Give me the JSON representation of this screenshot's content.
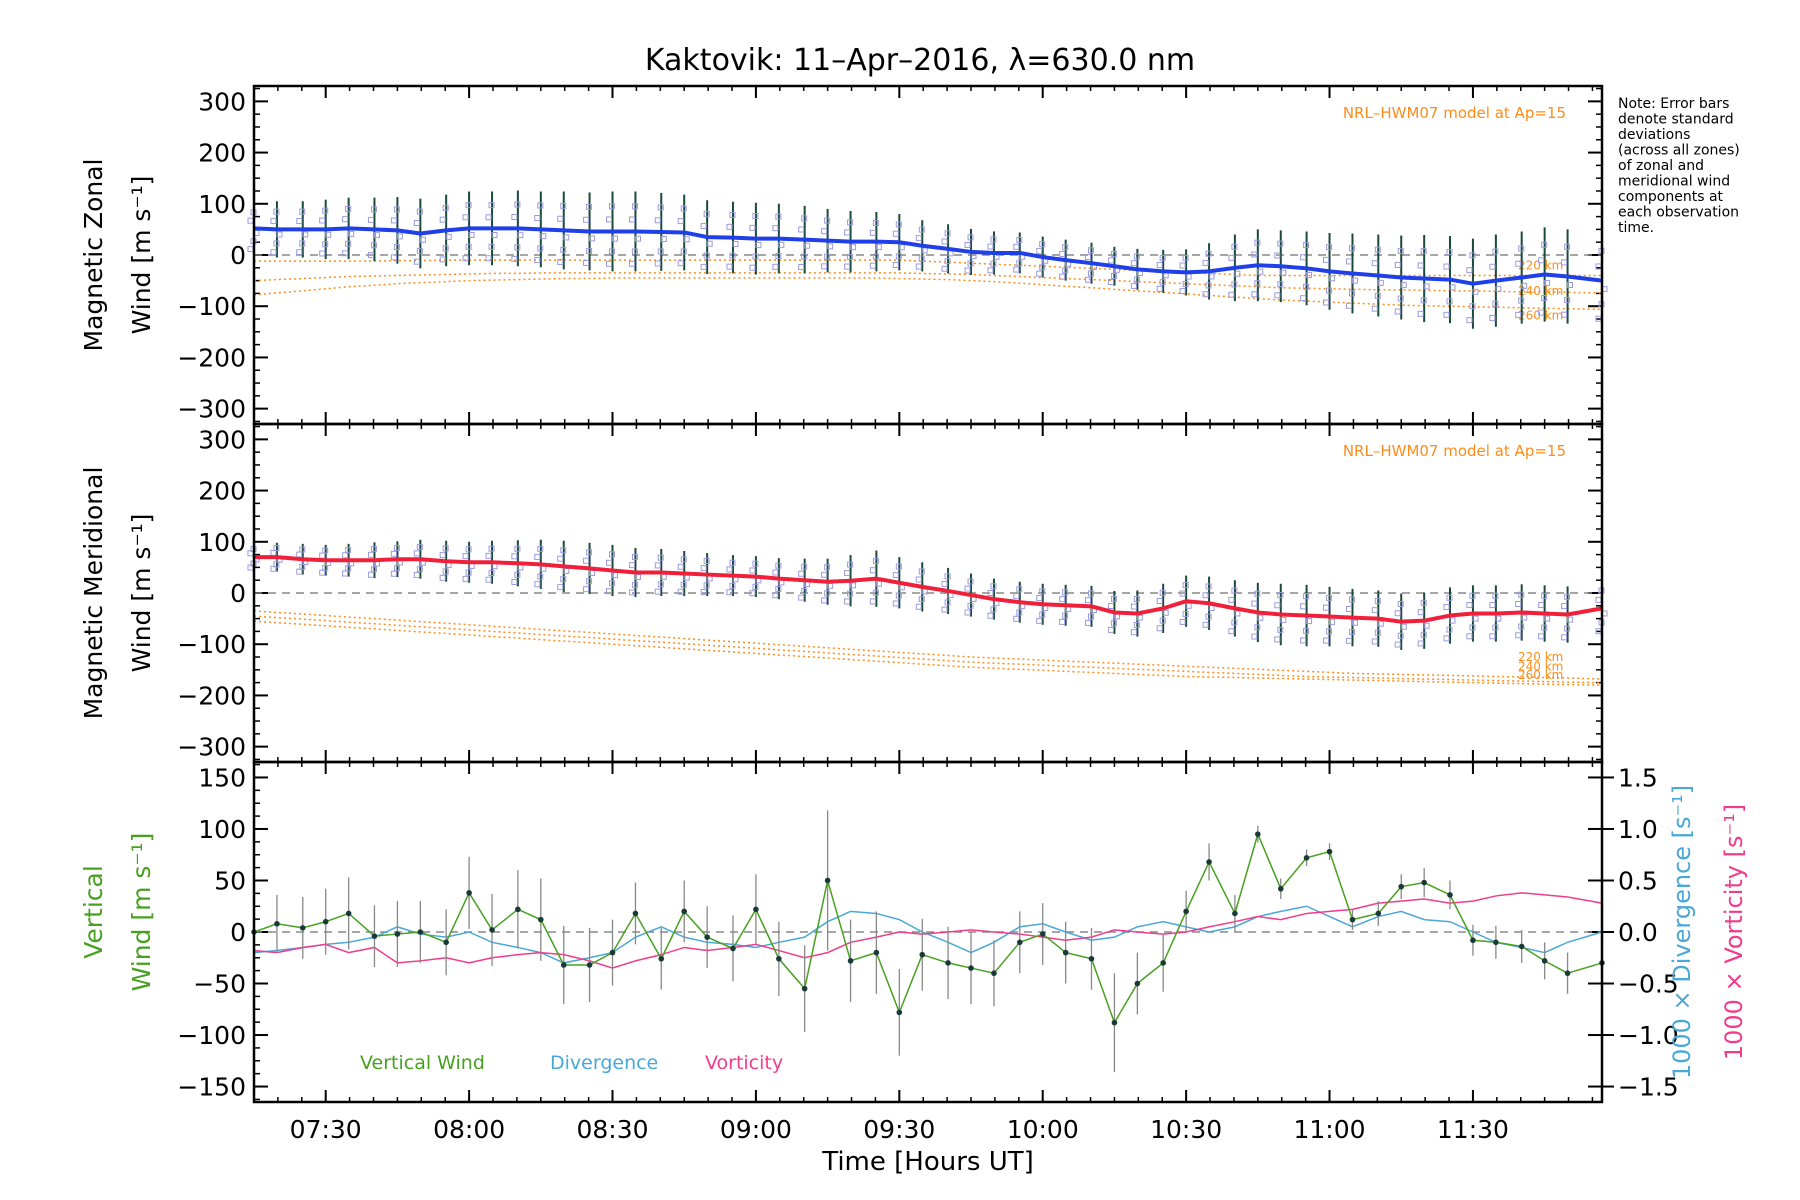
{
  "title": "Kaktovik: 11–Apr–2016, λ=630.0 nm",
  "note_lines": [
    "Note: Error bars",
    "denote standard",
    "deviations",
    "(across all zones)",
    "of zonal and",
    "meridional wind",
    "components at",
    "each observation",
    "time."
  ],
  "colors": {
    "zonal": "#1f3fe8",
    "meridional": "#f0203a",
    "vertical": "#48a020",
    "divergence": "#4aa8d8",
    "vorticity": "#f03c8c",
    "model": "#ff8c1a",
    "scatter": "#9a9ae0",
    "errorbar": "#1a4a3a"
  },
  "chart_data": [
    {
      "type": "line",
      "name": "zonal",
      "ylabel_line1": "Magnetic Zonal",
      "ylabel_line2": "Wind [m s⁻¹]",
      "model_label": "NRL–HWM07 model at Ap=15",
      "model_altitudes": [
        "220 km",
        "240 km",
        "260 km"
      ],
      "xlim": [
        7.25,
        11.95
      ],
      "ylim": [
        -330,
        330
      ],
      "yticks": [
        300,
        200,
        100,
        0,
        -100,
        -200,
        -300
      ],
      "x": [
        7.25,
        7.33,
        7.42,
        7.5,
        7.58,
        7.67,
        7.75,
        7.83,
        7.92,
        8.0,
        8.08,
        8.17,
        8.25,
        8.33,
        8.42,
        8.5,
        8.58,
        8.67,
        8.75,
        8.83,
        8.92,
        9.0,
        9.08,
        9.17,
        9.25,
        9.33,
        9.42,
        9.5,
        9.58,
        9.67,
        9.75,
        9.83,
        9.92,
        10.0,
        10.08,
        10.17,
        10.25,
        10.33,
        10.42,
        10.5,
        10.58,
        10.67,
        10.75,
        10.83,
        10.92,
        11.0,
        11.08,
        11.17,
        11.25,
        11.33,
        11.42,
        11.5,
        11.58,
        11.67,
        11.75,
        11.83,
        11.95
      ],
      "y": [
        52,
        50,
        50,
        50,
        52,
        50,
        48,
        42,
        48,
        52,
        52,
        52,
        50,
        48,
        46,
        46,
        46,
        45,
        44,
        35,
        34,
        32,
        32,
        30,
        28,
        26,
        26,
        25,
        18,
        12,
        6,
        4,
        4,
        -4,
        -10,
        -16,
        -22,
        -28,
        -32,
        -34,
        -32,
        -25,
        -20,
        -22,
        -26,
        -32,
        -36,
        -40,
        -44,
        -46,
        -48,
        -56,
        -50,
        -44,
        -38,
        -42,
        -50
      ],
      "err": [
        50,
        55,
        55,
        58,
        60,
        62,
        65,
        68,
        70,
        72,
        72,
        74,
        74,
        76,
        76,
        78,
        78,
        76,
        74,
        72,
        70,
        70,
        68,
        66,
        62,
        60,
        58,
        55,
        50,
        48,
        45,
        42,
        40,
        40,
        40,
        40,
        38,
        40,
        42,
        45,
        55,
        65,
        70,
        70,
        72,
        75,
        78,
        80,
        82,
        85,
        85,
        88,
        90,
        90,
        92,
        92,
        92
      ],
      "model_220": [
        -12,
        -12,
        -12,
        -12,
        -12,
        -12,
        -11,
        -11,
        -10,
        -10,
        -10,
        -10,
        -10,
        -10,
        -10,
        -10,
        -10,
        -10,
        -10,
        -10,
        -10,
        -10,
        -10,
        -10,
        -10,
        -10,
        -10,
        -10,
        -12,
        -14,
        -16,
        -18,
        -20,
        -22,
        -24,
        -26,
        -28,
        -30,
        -32,
        -34,
        -36,
        -38,
        -40,
        -40,
        -40,
        -40,
        -40,
        -40,
        -40,
        -40,
        -40,
        -40,
        -40,
        -40,
        -40,
        -40,
        -40
      ],
      "model_240": [
        -50,
        -48,
        -46,
        -44,
        -42,
        -41,
        -40,
        -39,
        -38,
        -37,
        -36,
        -36,
        -35,
        -35,
        -35,
        -35,
        -35,
        -35,
        -35,
        -35,
        -35,
        -35,
        -35,
        -35,
        -35,
        -35,
        -35,
        -35,
        -36,
        -37,
        -38,
        -40,
        -42,
        -44,
        -46,
        -48,
        -50,
        -52,
        -54,
        -56,
        -58,
        -60,
        -62,
        -64,
        -65,
        -66,
        -67,
        -68,
        -68,
        -69,
        -70,
        -70,
        -71,
        -72,
        -72,
        -73,
        -74
      ],
      "model_260": [
        -78,
        -74,
        -70,
        -66,
        -62,
        -59,
        -56,
        -54,
        -52,
        -50,
        -49,
        -48,
        -47,
        -46,
        -46,
        -45,
        -45,
        -45,
        -45,
        -45,
        -45,
        -45,
        -45,
        -45,
        -45,
        -45,
        -45,
        -46,
        -47,
        -48,
        -50,
        -52,
        -55,
        -58,
        -61,
        -64,
        -67,
        -70,
        -73,
        -76,
        -79,
        -82,
        -85,
        -88,
        -90,
        -92,
        -94,
        -96,
        -98,
        -99,
        -100,
        -101,
        -102,
        -103,
        -104,
        -105,
        -106
      ]
    },
    {
      "type": "line",
      "name": "meridional",
      "ylabel_line1": "Magnetic Meridional",
      "ylabel_line2": "Wind [m s⁻¹]",
      "model_label": "NRL–HWM07 model at Ap=15",
      "model_altitudes": [
        "220 km",
        "240 km",
        "260 km"
      ],
      "xlim": [
        7.25,
        11.95
      ],
      "ylim": [
        -330,
        330
      ],
      "yticks": [
        300,
        200,
        100,
        0,
        -100,
        -200,
        -300
      ],
      "x": [
        7.25,
        7.33,
        7.42,
        7.5,
        7.58,
        7.67,
        7.75,
        7.83,
        7.92,
        8.0,
        8.08,
        8.17,
        8.25,
        8.33,
        8.42,
        8.5,
        8.58,
        8.67,
        8.75,
        8.83,
        8.92,
        9.0,
        9.08,
        9.17,
        9.25,
        9.33,
        9.42,
        9.5,
        9.58,
        9.67,
        9.75,
        9.83,
        9.92,
        10.0,
        10.08,
        10.17,
        10.25,
        10.33,
        10.42,
        10.5,
        10.58,
        10.67,
        10.75,
        10.83,
        10.92,
        11.0,
        11.08,
        11.17,
        11.25,
        11.33,
        11.42,
        11.5,
        11.58,
        11.67,
        11.75,
        11.83,
        11.95
      ],
      "y": [
        70,
        70,
        66,
        64,
        64,
        64,
        66,
        66,
        62,
        60,
        60,
        58,
        56,
        52,
        48,
        44,
        40,
        40,
        38,
        36,
        34,
        32,
        28,
        25,
        22,
        24,
        28,
        20,
        12,
        4,
        -4,
        -12,
        -18,
        -22,
        -24,
        -26,
        -38,
        -40,
        -30,
        -16,
        -20,
        -30,
        -38,
        -42,
        -44,
        -46,
        -48,
        -50,
        -56,
        -54,
        -44,
        -40,
        -40,
        -38,
        -40,
        -42,
        -30
      ],
      "err": [
        25,
        28,
        30,
        30,
        32,
        35,
        35,
        38,
        40,
        40,
        42,
        45,
        48,
        50,
        50,
        50,
        48,
        46,
        44,
        42,
        40,
        40,
        40,
        42,
        45,
        50,
        55,
        50,
        48,
        45,
        42,
        40,
        40,
        40,
        40,
        40,
        42,
        45,
        48,
        50,
        52,
        55,
        58,
        60,
        60,
        58,
        56,
        55,
        55,
        55,
        55,
        55,
        55,
        55,
        55,
        55,
        55
      ],
      "model_220": [
        -35,
        -38,
        -41,
        -44,
        -47,
        -50,
        -53,
        -56,
        -59,
        -62,
        -65,
        -68,
        -71,
        -74,
        -77,
        -80,
        -83,
        -86,
        -89,
        -92,
        -95,
        -98,
        -101,
        -104,
        -107,
        -110,
        -113,
        -116,
        -119,
        -122,
        -125,
        -127,
        -129,
        -131,
        -133,
        -135,
        -137,
        -139,
        -141,
        -143,
        -145,
        -147,
        -149,
        -151,
        -153,
        -155,
        -157,
        -158,
        -159,
        -160,
        -161,
        -162,
        -163,
        -164,
        -165,
        -166,
        -168
      ],
      "model_240": [
        -45,
        -48,
        -51,
        -54,
        -57,
        -60,
        -63,
        -66,
        -69,
        -72,
        -75,
        -78,
        -81,
        -84,
        -87,
        -90,
        -93,
        -96,
        -99,
        -102,
        -105,
        -108,
        -111,
        -114,
        -117,
        -120,
        -123,
        -126,
        -129,
        -132,
        -135,
        -137,
        -139,
        -141,
        -143,
        -145,
        -147,
        -149,
        -151,
        -153,
        -155,
        -157,
        -159,
        -161,
        -163,
        -164,
        -165,
        -166,
        -167,
        -168,
        -169,
        -170,
        -171,
        -172,
        -173,
        -174,
        -175
      ],
      "model_260": [
        -55,
        -58,
        -61,
        -64,
        -67,
        -70,
        -73,
        -76,
        -79,
        -82,
        -85,
        -88,
        -91,
        -94,
        -97,
        -100,
        -103,
        -106,
        -109,
        -112,
        -115,
        -118,
        -121,
        -124,
        -127,
        -130,
        -133,
        -136,
        -139,
        -142,
        -145,
        -147,
        -149,
        -151,
        -153,
        -155,
        -157,
        -159,
        -161,
        -163,
        -164,
        -165,
        -166,
        -167,
        -168,
        -169,
        -170,
        -171,
        -172,
        -173,
        -174,
        -175,
        -176,
        -177,
        -178,
        -179,
        -180
      ]
    },
    {
      "type": "line",
      "name": "vertical",
      "ylabel_line1": "Vertical",
      "ylabel_line2": "Wind [m s⁻¹]",
      "right_label_div": "1000 × Divergence [s⁻¹]",
      "right_label_vort": "1000 × Vorticity [s⁻¹]",
      "xlim": [
        7.25,
        11.95
      ],
      "ylim": [
        -165,
        165
      ],
      "yticks": [
        150,
        100,
        50,
        0,
        -50,
        -100,
        -150
      ],
      "y2lim": [
        -1.65,
        1.65
      ],
      "y2ticks": [
        "1.5",
        "1.0",
        "0.5",
        "0.0",
        "−0.5",
        "−1.0",
        "−1.5"
      ],
      "y2tick_values": [
        1.5,
        1.0,
        0.5,
        0.0,
        -0.5,
        -1.0,
        -1.5
      ],
      "legend": [
        "Vertical Wind",
        "Divergence",
        "Vorticity"
      ],
      "xticks": [
        "07:30",
        "08:00",
        "08:30",
        "09:00",
        "09:30",
        "10:00",
        "10:30",
        "11:00",
        "11:30"
      ],
      "xtick_values": [
        7.5,
        8.0,
        8.5,
        9.0,
        9.5,
        10.0,
        10.5,
        11.0,
        11.5
      ],
      "xlabel": "Time [Hours UT]",
      "x": [
        7.25,
        7.33,
        7.42,
        7.5,
        7.58,
        7.67,
        7.75,
        7.83,
        7.92,
        8.0,
        8.08,
        8.17,
        8.25,
        8.33,
        8.42,
        8.5,
        8.58,
        8.67,
        8.75,
        8.83,
        8.92,
        9.0,
        9.08,
        9.17,
        9.25,
        9.33,
        9.42,
        9.5,
        9.58,
        9.67,
        9.75,
        9.83,
        9.92,
        10.0,
        10.08,
        10.17,
        10.25,
        10.33,
        10.42,
        10.5,
        10.58,
        10.67,
        10.75,
        10.83,
        10.92,
        11.0,
        11.08,
        11.17,
        11.25,
        11.33,
        11.42,
        11.5,
        11.58,
        11.67,
        11.75,
        11.83,
        11.95
      ],
      "y": [
        0,
        8,
        4,
        10,
        18,
        -4,
        -2,
        0,
        -10,
        38,
        2,
        22,
        12,
        -32,
        -32,
        -20,
        18,
        -26,
        20,
        -5,
        -16,
        22,
        -26,
        -55,
        50,
        -28,
        -20,
        -78,
        -22,
        -30,
        -35,
        -40,
        -10,
        -2,
        -20,
        -26,
        -88,
        -50,
        -30,
        20,
        68,
        18,
        95,
        42,
        72,
        78,
        12,
        18,
        44,
        48,
        36,
        -8,
        -10,
        -14,
        -28,
        -40,
        -30
      ],
      "err": [
        25,
        28,
        30,
        32,
        35,
        30,
        32,
        30,
        32,
        35,
        35,
        38,
        40,
        38,
        36,
        32,
        30,
        30,
        30,
        30,
        32,
        34,
        36,
        42,
        68,
        40,
        40,
        42,
        35,
        35,
        35,
        32,
        30,
        30,
        30,
        30,
        48,
        30,
        28,
        20,
        18,
        18,
        8,
        10,
        8,
        8,
        10,
        12,
        12,
        14,
        14,
        15,
        16,
        16,
        18,
        20,
        22
      ],
      "divergence": [
        -0.2,
        -0.18,
        -0.15,
        -0.12,
        -0.1,
        -0.05,
        0.05,
        -0.02,
        -0.05,
        0.0,
        -0.1,
        -0.15,
        -0.2,
        -0.3,
        -0.25,
        -0.2,
        -0.05,
        0.05,
        -0.05,
        -0.1,
        -0.12,
        -0.15,
        -0.1,
        -0.05,
        0.1,
        0.2,
        0.18,
        0.12,
        0.0,
        -0.1,
        -0.2,
        -0.1,
        0.05,
        0.08,
        0.0,
        -0.08,
        -0.05,
        0.05,
        0.1,
        0.05,
        0.0,
        0.05,
        0.15,
        0.2,
        0.25,
        0.15,
        0.05,
        0.15,
        0.2,
        0.12,
        0.1,
        0.0,
        -0.1,
        -0.15,
        -0.2,
        -0.1,
        0.0
      ],
      "vorticity": [
        -0.18,
        -0.2,
        -0.15,
        -0.12,
        -0.2,
        -0.15,
        -0.3,
        -0.28,
        -0.25,
        -0.3,
        -0.25,
        -0.22,
        -0.2,
        -0.22,
        -0.28,
        -0.35,
        -0.28,
        -0.22,
        -0.15,
        -0.18,
        -0.15,
        -0.12,
        -0.18,
        -0.25,
        -0.2,
        -0.1,
        -0.05,
        0.0,
        -0.02,
        0.0,
        0.02,
        0.0,
        -0.02,
        -0.05,
        -0.08,
        -0.05,
        0.02,
        0.0,
        -0.02,
        0.0,
        0.05,
        0.1,
        0.15,
        0.12,
        0.18,
        0.2,
        0.22,
        0.28,
        0.3,
        0.32,
        0.28,
        0.3,
        0.35,
        0.38,
        0.36,
        0.34,
        0.28
      ]
    }
  ]
}
